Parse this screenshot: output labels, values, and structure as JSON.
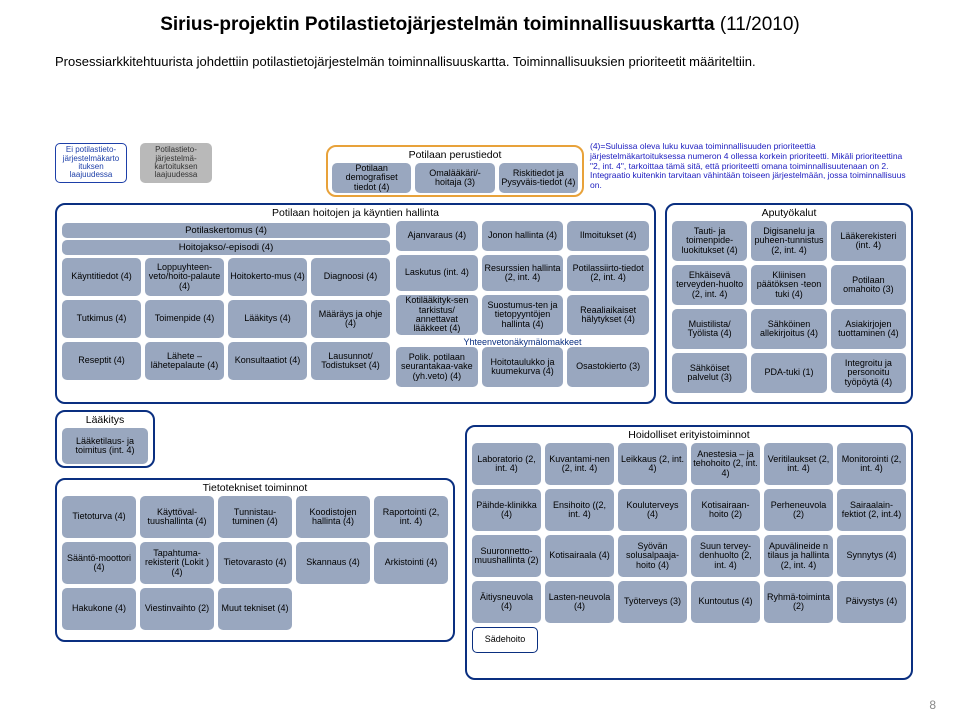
{
  "colors": {
    "border_main": "#0a2f80",
    "border_orange": "#e8a23a",
    "cell_bg": "#99a7bf",
    "legend_blue_border": "#1d3fa8",
    "legend_gray": "#b9b9b9",
    "footnote": "#2020c0"
  },
  "title_bold": "Sirius-projektin Potilastietojärjestelmän toiminnallisuuskartta",
  "title_rest": " (11/2010)",
  "subtitle": "Prosessiarkkitehtuurista johdettiin potilastietojärjestelmän toiminnallisuuskartta. Toiminnallisuuksien prioriteetit määriteltiin.",
  "legend1": "Ei potilastieto-järjestelmäkarto ituksen laajuudessa",
  "legend2": "Potilastieto-järjestelmä-kartoituksen laajuudessa",
  "footnote": "(4)=Suluissa oleva luku kuvaa toiminnallisuuden prioriteettia järjestelmäkartoituksessa numeron 4 ollessa korkein prioriteetti. Mikäli prioriteettina \"2, int. 4\", tarkoittaa tämä sitä, että prioriteetti omana toiminnallisuutenaan on 2. Integraatio kuitenkin tarvitaan vähintään toiseen järjestelmään, jossa toiminnallisuus on.",
  "perustiedot": {
    "title": "Potilaan perustiedot",
    "cells": [
      "Potilaan demografiset tiedot (4)",
      "Omalääkäri/-hoitaja (3)",
      "Riskitiedot ja Pysyväis-tiedot (4)"
    ]
  },
  "hallinta": {
    "title": "Potilaan hoitojen ja käyntien hallinta",
    "bar1": "Potilaskertomus (4)",
    "bar2": "Hoitojakso/-episodi (4)",
    "leftGrid": [
      [
        "Käyntitiedot (4)",
        "Loppuyhteen-veto/hoito-palaute (4)",
        "Hoitokerto-mus (4)",
        "Diagnoosi (4)"
      ],
      [
        "Tutkimus (4)",
        "Toimenpide (4)",
        "Lääkitys (4)",
        "Määräys ja ohje (4)"
      ],
      [
        "Reseptit (4)",
        "Lähete – lähetepalaute (4)",
        "Konsultaatiot (4)",
        "Lausunnot/ Todistukset (4)"
      ]
    ],
    "rightTop": [
      "Ajanvaraus (4)",
      "Jonon hallinta (4)",
      "Ilmoitukset (4)"
    ],
    "rightMid1": [
      "Laskutus (int. 4)",
      "Resurssien hallinta (2, int. 4)",
      "Potilassiirto-tiedot (2, int. 4)"
    ],
    "rightMid2": [
      "Kotilääkityk-sen tarkistus/ annettavat lääkkeet (4)",
      "Suostumus-ten ja tietopyyntöjen hallinta (4)",
      "Reaaliaikaiset hälytykset (4)"
    ],
    "banner": "Yhteenvetonäkymälomakkeet",
    "rightBot": [
      "Polik. potilaan seurantakaa-vake (yh.veto) (4)",
      "Hoitotaulukko ja kuumekurva (4)",
      "Osastokierto (3)"
    ]
  },
  "aputyokalut": {
    "title": "Aputyökalut",
    "rows": [
      [
        "Tauti- ja toimenpide-luokitukset (4)",
        "Digisanelu ja puheen-tunnistus (2, int. 4)",
        "Lääkerekisteri (int. 4)"
      ],
      [
        "Ehkäisevä terveyden-huolto (2, int. 4)",
        "Kliinisen päätöksen -teon tuki (4)",
        "Potilaan omahoito (3)"
      ],
      [
        "Muistilista/ Työlista (4)",
        "Sähköinen allekirjoitus (4)",
        "Asiakirjojen tuottaminen (4)"
      ],
      [
        "Sähköiset palvelut (3)",
        "PDA-tuki (1)",
        "Integroitu ja personoitu työpöytä (4)"
      ]
    ]
  },
  "laakitys": {
    "title": "Lääkitys",
    "cell": "Lääketilaus- ja toimitus (int. 4)"
  },
  "tieto": {
    "title": "Tietotekniset toiminnot",
    "rows": [
      [
        "Tietoturva (4)",
        "Käyttöval-tuushallinta (4)",
        "Tunnistau-tuminen (4)",
        "Koodistojen hallinta (4)",
        "Raportointi (2, int. 4)"
      ],
      [
        "Sääntö-moottori (4)",
        "Tapahtuma-rekisterit (Lokit )(4)",
        "Tietovarasto (4)",
        "Skannaus (4)",
        "Arkistointi (4)"
      ],
      [
        "Hakukone (4)",
        "Viestinvaihto (2)",
        "Muut tekniset (4)"
      ]
    ]
  },
  "hoidolliset": {
    "title": "Hoidolliset erityistoiminnot",
    "rows": [
      [
        "Laboratorio (2, int. 4)",
        "Kuvantami-nen (2, int. 4)",
        "Leikkaus (2, int. 4)",
        "Anestesia – ja tehohoito (2, int. 4)",
        "Veritilaukset (2, int. 4)",
        "Monitorointi (2, int. 4)"
      ],
      [
        "Päihde-klinikka (4)",
        "Ensihoito ((2, int. 4)",
        "Kouluterveys (4)",
        "Kotisairaan-hoito (2)",
        "Perheneuvola (2)",
        "Sairaalain-fektiot (2, int.4)"
      ],
      [
        "Suuronnetto-muushallinta (2)",
        "Kotisairaala (4)",
        "Syövän solusalpaaja-hoito (4)",
        "Suun tervey-denhuolto (2, int. 4)",
        "Apuvälineide n tilaus ja hallinta (2, int. 4)",
        "Synnytys (4)"
      ],
      [
        "Äitiysneuvola (4)",
        "Lasten-neuvola (4)",
        "Työterveys (3)",
        "Kuntoutus (4)",
        "Ryhmä-toiminta (2)",
        "Päivystys (4)"
      ]
    ],
    "extra": "Sädehoito"
  },
  "page": "8"
}
